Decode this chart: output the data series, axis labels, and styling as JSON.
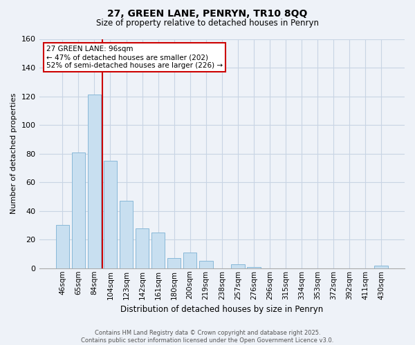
{
  "title": "27, GREEN LANE, PENRYN, TR10 8QQ",
  "subtitle": "Size of property relative to detached houses in Penryn",
  "xlabel": "Distribution of detached houses by size in Penryn",
  "ylabel": "Number of detached properties",
  "bar_color": "#c8dff0",
  "bar_edge_color": "#88b8d8",
  "grid_color": "#c8d4e4",
  "background_color": "#eef2f8",
  "vline_color": "#cc0000",
  "categories": [
    "46sqm",
    "65sqm",
    "84sqm",
    "104sqm",
    "123sqm",
    "142sqm",
    "161sqm",
    "180sqm",
    "200sqm",
    "219sqm",
    "238sqm",
    "257sqm",
    "276sqm",
    "296sqm",
    "315sqm",
    "334sqm",
    "353sqm",
    "372sqm",
    "392sqm",
    "411sqm",
    "430sqm"
  ],
  "values": [
    30,
    81,
    121,
    75,
    47,
    28,
    25,
    7,
    11,
    5,
    0,
    3,
    1,
    0,
    0,
    0,
    0,
    0,
    0,
    0,
    2
  ],
  "ylim": [
    0,
    160
  ],
  "yticks": [
    0,
    20,
    40,
    60,
    80,
    100,
    120,
    140,
    160
  ],
  "annotation_title": "27 GREEN LANE: 96sqm",
  "annotation_line1": "← 47% of detached houses are smaller (202)",
  "annotation_line2": "52% of semi-detached houses are larger (226) →",
  "annotation_box_color": "#ffffff",
  "annotation_box_edge": "#cc0000",
  "footer_line1": "Contains HM Land Registry data © Crown copyright and database right 2025.",
  "footer_line2": "Contains public sector information licensed under the Open Government Licence v3.0.",
  "figsize": [
    6.0,
    5.0
  ],
  "dpi": 100
}
